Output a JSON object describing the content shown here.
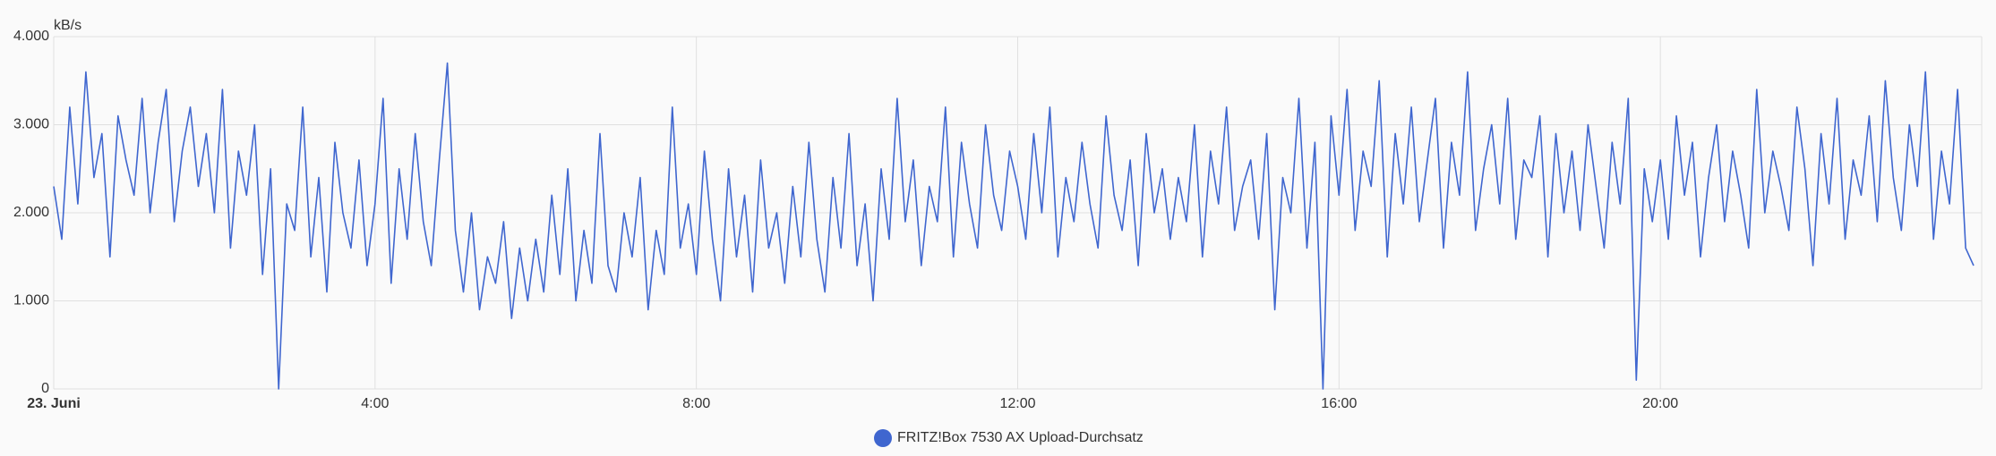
{
  "chart_data": {
    "type": "line",
    "y_label": "kB/s",
    "xlim": [
      0,
      24
    ],
    "xticks": [
      {
        "value": 0,
        "label": "23. Juni"
      },
      {
        "value": 4,
        "label": "4:00"
      },
      {
        "value": 8,
        "label": "8:00"
      },
      {
        "value": 12,
        "label": "12:00"
      },
      {
        "value": 16,
        "label": "16:00"
      },
      {
        "value": 20,
        "label": "20:00"
      }
    ],
    "ylim": [
      0,
      4000
    ],
    "yticks": [
      0,
      {
        "value": 1000,
        "label": "1.000"
      },
      {
        "value": 2000,
        "label": "2.000"
      },
      {
        "value": 3000,
        "label": "3.000"
      },
      {
        "value": 4000,
        "label": "4.000"
      }
    ],
    "grid": true,
    "legend": "bottom",
    "x": [
      0,
      0.1,
      0.2,
      0.3,
      0.4,
      0.5,
      0.6,
      0.7,
      0.8,
      0.9,
      1,
      1.1,
      1.2,
      1.3,
      1.4,
      1.5,
      1.6,
      1.7,
      1.8,
      1.9,
      2,
      2.1,
      2.2,
      2.3,
      2.4,
      2.5,
      2.6,
      2.7,
      2.8,
      2.9,
      3,
      3.1,
      3.2,
      3.3,
      3.4,
      3.5,
      3.6,
      3.7,
      3.8,
      3.9,
      4,
      4.1,
      4.2,
      4.3,
      4.4,
      4.5,
      4.6,
      4.7,
      4.8,
      4.9,
      5,
      5.1,
      5.2,
      5.3,
      5.4,
      5.5,
      5.6,
      5.7,
      5.8,
      5.9,
      6,
      6.1,
      6.2,
      6.3,
      6.4,
      6.5,
      6.6,
      6.7,
      6.8,
      6.9,
      7,
      7.1,
      7.2,
      7.3,
      7.4,
      7.5,
      7.6,
      7.7,
      7.8,
      7.9,
      8,
      8.1,
      8.2,
      8.3,
      8.4,
      8.5,
      8.6,
      8.7,
      8.8,
      8.9,
      9,
      9.1,
      9.2,
      9.3,
      9.4,
      9.5,
      9.6,
      9.7,
      9.8,
      9.9,
      10,
      10.1,
      10.2,
      10.3,
      10.4,
      10.5,
      10.6,
      10.7,
      10.8,
      10.9,
      11,
      11.1,
      11.2,
      11.3,
      11.4,
      11.5,
      11.6,
      11.7,
      11.8,
      11.9,
      12,
      12.1,
      12.2,
      12.3,
      12.4,
      12.5,
      12.6,
      12.7,
      12.8,
      12.9,
      13,
      13.1,
      13.2,
      13.3,
      13.4,
      13.5,
      13.6,
      13.7,
      13.8,
      13.9,
      14,
      14.1,
      14.2,
      14.3,
      14.4,
      14.5,
      14.6,
      14.7,
      14.8,
      14.9,
      15,
      15.1,
      15.2,
      15.3,
      15.4,
      15.5,
      15.6,
      15.7,
      15.8,
      15.9,
      16,
      16.1,
      16.2,
      16.3,
      16.4,
      16.5,
      16.6,
      16.7,
      16.8,
      16.9,
      17,
      17.1,
      17.2,
      17.3,
      17.4,
      17.5,
      17.6,
      17.7,
      17.8,
      17.9,
      18,
      18.1,
      18.2,
      18.3,
      18.4,
      18.5,
      18.6,
      18.7,
      18.8,
      18.9,
      19,
      19.1,
      19.2,
      19.3,
      19.4,
      19.5,
      19.6,
      19.7,
      19.8,
      19.9,
      20,
      20.1,
      20.2,
      20.3,
      20.4,
      20.5,
      20.6,
      20.7,
      20.8,
      20.9,
      21,
      21.1,
      21.2,
      21.3,
      21.4,
      21.5,
      21.6,
      21.7,
      21.8,
      21.9,
      22,
      22.1,
      22.2,
      22.3,
      22.4,
      22.5,
      22.6,
      22.7,
      22.8,
      22.9,
      23,
      23.1,
      23.2,
      23.3,
      23.4,
      23.5,
      23.6,
      23.7,
      23.8,
      23.9
    ],
    "series": [
      {
        "name": "FRITZ!Box 7530 AX Upload-Durchsatz",
        "color": "#3f66cf",
        "values": [
          2300,
          1700,
          3200,
          2100,
          3600,
          2400,
          2900,
          1500,
          3100,
          2600,
          2200,
          3300,
          2000,
          2800,
          3400,
          1900,
          2700,
          3200,
          2300,
          2900,
          2000,
          3400,
          1600,
          2700,
          2200,
          3000,
          1300,
          2500,
          0,
          2100,
          1800,
          3200,
          1500,
          2400,
          1100,
          2800,
          2000,
          1600,
          2600,
          1400,
          2100,
          3300,
          1200,
          2500,
          1700,
          2900,
          1900,
          1400,
          2600,
          3700,
          1800,
          1100,
          2000,
          900,
          1500,
          1200,
          1900,
          800,
          1600,
          1000,
          1700,
          1100,
          2200,
          1300,
          2500,
          1000,
          1800,
          1200,
          2900,
          1400,
          1100,
          2000,
          1500,
          2400,
          900,
          1800,
          1300,
          3200,
          1600,
          2100,
          1300,
          2700,
          1700,
          1000,
          2500,
          1500,
          2200,
          1100,
          2600,
          1600,
          2000,
          1200,
          2300,
          1500,
          2800,
          1700,
          1100,
          2400,
          1600,
          2900,
          1400,
          2100,
          1000,
          2500,
          1700,
          3300,
          1900,
          2600,
          1400,
          2300,
          1900,
          3200,
          1500,
          2800,
          2100,
          1600,
          3000,
          2200,
          1800,
          2700,
          2300,
          1700,
          2900,
          2000,
          3200,
          1500,
          2400,
          1900,
          2800,
          2100,
          1600,
          3100,
          2200,
          1800,
          2600,
          1400,
          2900,
          2000,
          2500,
          1700,
          2400,
          1900,
          3000,
          1500,
          2700,
          2100,
          3200,
          1800,
          2300,
          2600,
          1700,
          2900,
          900,
          2400,
          2000,
          3300,
          1600,
          2800,
          0,
          3100,
          2200,
          3400,
          1800,
          2700,
          2300,
          3500,
          1500,
          2900,
          2100,
          3200,
          1900,
          2600,
          3300,
          1600,
          2800,
          2200,
          3600,
          1800,
          2500,
          3000,
          2100,
          3300,
          1700,
          2600,
          2400,
          3100,
          1500,
          2900,
          2000,
          2700,
          1800,
          3000,
          2300,
          1600,
          2800,
          2100,
          3300,
          100,
          2500,
          1900,
          2600,
          1700,
          3100,
          2200,
          2800,
          1500,
          2400,
          3000,
          1900,
          2700,
          2200,
          1600,
          3400,
          2000,
          2700,
          2300,
          1800,
          3200,
          2500,
          1400,
          2900,
          2100,
          3300,
          1700,
          2600,
          2200,
          3100,
          1900,
          3500,
          2400,
          1800,
          3000,
          2300,
          3600,
          1700,
          2700,
          2100,
          3400,
          1600,
          1400
        ]
      }
    ]
  }
}
